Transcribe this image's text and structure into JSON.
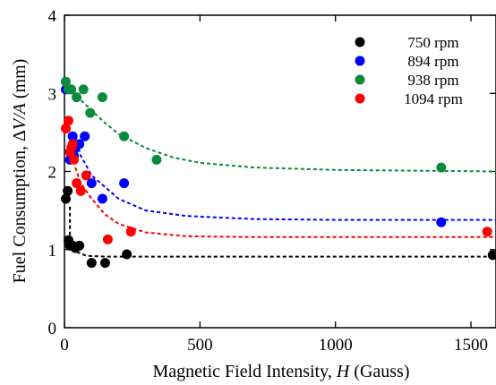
{
  "chart_data": {
    "type": "scatter",
    "title": "",
    "xlabel": "Magnetic Field Intensity, H (Gauss)",
    "ylabel": "Fuel Consumption, ΔV/A (mm)",
    "xlim": [
      0,
      1600
    ],
    "ylim": [
      0,
      4
    ],
    "xticks": [
      0,
      500,
      1000,
      1500
    ],
    "yticks": [
      0,
      1,
      2,
      3,
      4
    ],
    "grid": false,
    "legend_position": "top-right",
    "series": [
      {
        "name": "750 rpm",
        "color": "#000000",
        "points": [
          [
            5,
            1.65
          ],
          [
            12,
            1.75
          ],
          [
            15,
            1.12
          ],
          [
            20,
            1.05
          ],
          [
            30,
            1.05
          ],
          [
            40,
            1.02
          ],
          [
            55,
            1.05
          ],
          [
            100,
            0.83
          ],
          [
            150,
            0.83
          ],
          [
            230,
            0.94
          ],
          [
            1580,
            0.93
          ]
        ],
        "fit": [
          [
            20,
            1.55
          ],
          [
            20,
            1.0
          ],
          [
            40,
            0.98
          ],
          [
            80,
            0.92
          ],
          [
            150,
            0.91
          ],
          [
            300,
            0.91
          ],
          [
            1600,
            0.91
          ]
        ]
      },
      {
        "name": "894 rpm",
        "color": "#0000ff",
        "points": [
          [
            5,
            3.05
          ],
          [
            20,
            2.15
          ],
          [
            30,
            2.45
          ],
          [
            35,
            2.2
          ],
          [
            40,
            2.3
          ],
          [
            55,
            2.35
          ],
          [
            75,
            2.45
          ],
          [
            100,
            1.85
          ],
          [
            140,
            1.65
          ],
          [
            220,
            1.85
          ],
          [
            1390,
            1.35
          ]
        ],
        "fit": [
          [
            40,
            2.45
          ],
          [
            60,
            2.2
          ],
          [
            100,
            1.95
          ],
          [
            150,
            1.8
          ],
          [
            200,
            1.65
          ],
          [
            300,
            1.5
          ],
          [
            450,
            1.43
          ],
          [
            700,
            1.39
          ],
          [
            1000,
            1.38
          ],
          [
            1600,
            1.38
          ]
        ]
      },
      {
        "name": "938 rpm",
        "color": "#0a8a3c",
        "points": [
          [
            5,
            3.15
          ],
          [
            15,
            3.05
          ],
          [
            25,
            3.05
          ],
          [
            45,
            2.95
          ],
          [
            70,
            3.05
          ],
          [
            95,
            2.75
          ],
          [
            140,
            2.95
          ],
          [
            220,
            2.45
          ],
          [
            340,
            2.15
          ],
          [
            1390,
            2.05
          ]
        ],
        "fit": [
          [
            0,
            3.15
          ],
          [
            50,
            2.95
          ],
          [
            100,
            2.78
          ],
          [
            150,
            2.62
          ],
          [
            200,
            2.48
          ],
          [
            300,
            2.3
          ],
          [
            400,
            2.18
          ],
          [
            500,
            2.11
          ],
          [
            700,
            2.05
          ],
          [
            1000,
            2.02
          ],
          [
            1600,
            2.0
          ]
        ]
      },
      {
        "name": "1094 rpm",
        "color": "#ff0000",
        "points": [
          [
            5,
            2.55
          ],
          [
            15,
            2.65
          ],
          [
            20,
            2.25
          ],
          [
            25,
            2.3
          ],
          [
            30,
            2.35
          ],
          [
            35,
            2.15
          ],
          [
            45,
            1.85
          ],
          [
            60,
            1.75
          ],
          [
            80,
            1.95
          ],
          [
            160,
            1.13
          ],
          [
            245,
            1.23
          ],
          [
            1560,
            1.23
          ]
        ],
        "fit": [
          [
            40,
            2.05
          ],
          [
            60,
            1.85
          ],
          [
            100,
            1.65
          ],
          [
            150,
            1.45
          ],
          [
            200,
            1.33
          ],
          [
            300,
            1.22
          ],
          [
            450,
            1.17
          ],
          [
            700,
            1.16
          ],
          [
            1000,
            1.16
          ],
          [
            1600,
            1.16
          ]
        ]
      }
    ]
  }
}
